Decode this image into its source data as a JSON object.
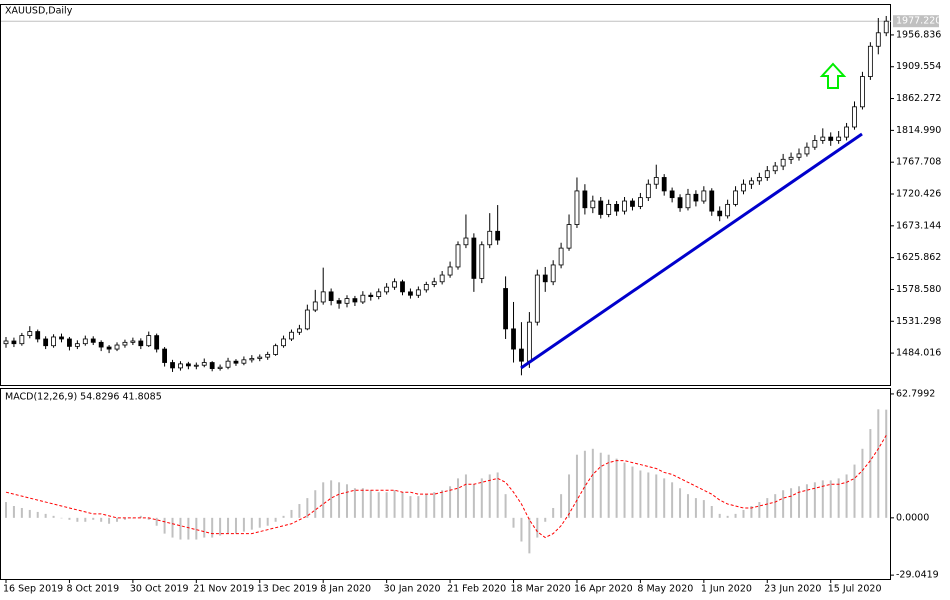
{
  "chart_data": [
    {
      "type": "candlestick",
      "title": "XAUUSD,Daily",
      "up_color": "#ffffff",
      "down_color": "#000000",
      "color": "#000000",
      "categories": [
        "16 Sep 2019",
        null,
        null,
        null,
        null,
        null,
        null,
        null,
        "8 Oct 2019",
        null,
        null,
        null,
        null,
        null,
        null,
        null,
        "30 Oct 2019",
        null,
        null,
        null,
        null,
        null,
        null,
        null,
        "21 Nov 2019",
        null,
        null,
        null,
        null,
        null,
        null,
        null,
        "13 Dec 2019",
        null,
        null,
        null,
        null,
        null,
        null,
        null,
        "8 Jan 2020",
        null,
        null,
        null,
        null,
        null,
        null,
        null,
        "30 Jan 2020",
        null,
        null,
        null,
        null,
        null,
        null,
        null,
        "21 Feb 2020",
        null,
        null,
        null,
        null,
        null,
        null,
        null,
        "18 Mar 2020",
        null,
        null,
        null,
        null,
        null,
        null,
        null,
        "16 Apr 2020",
        null,
        null,
        null,
        null,
        null,
        null,
        null,
        "8 May 2020",
        null,
        null,
        null,
        null,
        null,
        null,
        null,
        "1 Jun 2020",
        null,
        null,
        null,
        null,
        null,
        null,
        null,
        "23 Jun 2020",
        null,
        null,
        null,
        null,
        null,
        null,
        null,
        "15 Jul 2020",
        null,
        null,
        null,
        null,
        null,
        null,
        null
      ],
      "ohlc": [
        [
          1498,
          1508,
          1492,
          1502
        ],
        [
          1502,
          1507,
          1493,
          1498
        ],
        [
          1498,
          1514,
          1495,
          1510
        ],
        [
          1510,
          1524,
          1506,
          1516
        ],
        [
          1516,
          1519,
          1500,
          1505
        ],
        [
          1505,
          1509,
          1490,
          1495
        ],
        [
          1495,
          1512,
          1492,
          1508
        ],
        [
          1508,
          1513,
          1500,
          1505
        ],
        [
          1505,
          1508,
          1488,
          1494
        ],
        [
          1494,
          1503,
          1490,
          1498
        ],
        [
          1498,
          1510,
          1495,
          1505
        ],
        [
          1505,
          1509,
          1496,
          1500
        ],
        [
          1500,
          1503,
          1487,
          1493
        ],
        [
          1493,
          1496,
          1484,
          1490
        ],
        [
          1490,
          1500,
          1487,
          1496
        ],
        [
          1496,
          1504,
          1492,
          1500
        ],
        [
          1500,
          1507,
          1496,
          1502
        ],
        [
          1502,
          1506,
          1490,
          1495
        ],
        [
          1495,
          1516,
          1493,
          1510
        ],
        [
          1510,
          1513,
          1485,
          1490
        ],
        [
          1490,
          1493,
          1464,
          1470
        ],
        [
          1470,
          1474,
          1456,
          1462
        ],
        [
          1462,
          1472,
          1458,
          1468
        ],
        [
          1468,
          1471,
          1460,
          1465
        ],
        [
          1465,
          1470,
          1460,
          1466
        ],
        [
          1466,
          1476,
          1463,
          1470
        ],
        [
          1470,
          1472,
          1457,
          1461
        ],
        [
          1461,
          1467,
          1458,
          1463
        ],
        [
          1463,
          1477,
          1460,
          1472
        ],
        [
          1472,
          1475,
          1465,
          1469
        ],
        [
          1469,
          1479,
          1466,
          1474
        ],
        [
          1474,
          1481,
          1470,
          1476
        ],
        [
          1476,
          1482,
          1472,
          1478
        ],
        [
          1478,
          1486,
          1474,
          1482
        ],
        [
          1482,
          1498,
          1480,
          1495
        ],
        [
          1495,
          1510,
          1492,
          1505
        ],
        [
          1505,
          1519,
          1502,
          1515
        ],
        [
          1515,
          1526,
          1511,
          1520
        ],
        [
          1520,
          1556,
          1518,
          1548
        ],
        [
          1548,
          1578,
          1545,
          1560
        ],
        [
          1560,
          1611,
          1556,
          1575
        ],
        [
          1575,
          1580,
          1555,
          1562
        ],
        [
          1562,
          1566,
          1550,
          1558
        ],
        [
          1558,
          1570,
          1552,
          1565
        ],
        [
          1565,
          1569,
          1554,
          1560
        ],
        [
          1560,
          1576,
          1557,
          1570
        ],
        [
          1570,
          1574,
          1562,
          1568
        ],
        [
          1568,
          1580,
          1564,
          1575
        ],
        [
          1575,
          1588,
          1571,
          1582
        ],
        [
          1582,
          1595,
          1578,
          1590
        ],
        [
          1590,
          1593,
          1570,
          1575
        ],
        [
          1575,
          1580,
          1565,
          1570
        ],
        [
          1570,
          1583,
          1566,
          1578
        ],
        [
          1578,
          1590,
          1574,
          1586
        ],
        [
          1586,
          1596,
          1582,
          1590
        ],
        [
          1590,
          1606,
          1586,
          1600
        ],
        [
          1600,
          1620,
          1596,
          1612
        ],
        [
          1612,
          1650,
          1608,
          1645
        ],
        [
          1645,
          1690,
          1640,
          1655
        ],
        [
          1655,
          1662,
          1575,
          1595
        ],
        [
          1595,
          1650,
          1588,
          1645
        ],
        [
          1645,
          1692,
          1640,
          1665
        ],
        [
          1665,
          1704,
          1645,
          1652
        ],
        [
          1580,
          1598,
          1505,
          1520
        ],
        [
          1520,
          1560,
          1470,
          1490
        ],
        [
          1490,
          1530,
          1451,
          1472
        ],
        [
          1472,
          1545,
          1462,
          1530
        ],
        [
          1530,
          1608,
          1525,
          1600
        ],
        [
          1600,
          1612,
          1575,
          1590
        ],
        [
          1590,
          1622,
          1585,
          1615
        ],
        [
          1615,
          1648,
          1610,
          1640
        ],
        [
          1640,
          1690,
          1636,
          1675
        ],
        [
          1675,
          1745,
          1670,
          1725
        ],
        [
          1725,
          1735,
          1690,
          1700
        ],
        [
          1700,
          1718,
          1692,
          1710
        ],
        [
          1710,
          1716,
          1684,
          1690
        ],
        [
          1690,
          1712,
          1686,
          1705
        ],
        [
          1705,
          1710,
          1688,
          1695
        ],
        [
          1695,
          1716,
          1690,
          1710
        ],
        [
          1710,
          1714,
          1696,
          1702
        ],
        [
          1702,
          1722,
          1698,
          1715
        ],
        [
          1715,
          1742,
          1710,
          1735
        ],
        [
          1735,
          1764,
          1728,
          1745
        ],
        [
          1745,
          1750,
          1718,
          1725
        ],
        [
          1725,
          1730,
          1708,
          1715
        ],
        [
          1715,
          1720,
          1694,
          1700
        ],
        [
          1700,
          1728,
          1696,
          1720
        ],
        [
          1720,
          1726,
          1702,
          1710
        ],
        [
          1710,
          1732,
          1706,
          1725
        ],
        [
          1725,
          1729,
          1688,
          1695
        ],
        [
          1695,
          1702,
          1680,
          1688
        ],
        [
          1688,
          1712,
          1684,
          1705
        ],
        [
          1705,
          1732,
          1702,
          1725
        ],
        [
          1725,
          1742,
          1720,
          1735
        ],
        [
          1735,
          1745,
          1728,
          1740
        ],
        [
          1740,
          1752,
          1734,
          1745
        ],
        [
          1745,
          1762,
          1740,
          1755
        ],
        [
          1755,
          1768,
          1750,
          1762
        ],
        [
          1762,
          1780,
          1756,
          1772
        ],
        [
          1772,
          1782,
          1765,
          1775
        ],
        [
          1775,
          1788,
          1770,
          1780
        ],
        [
          1780,
          1797,
          1776,
          1790
        ],
        [
          1790,
          1808,
          1786,
          1800
        ],
        [
          1800,
          1818,
          1795,
          1805
        ],
        [
          1805,
          1812,
          1792,
          1800
        ],
        [
          1800,
          1814,
          1795,
          1805
        ],
        [
          1805,
          1826,
          1800,
          1820
        ],
        [
          1820,
          1858,
          1816,
          1850
        ],
        [
          1850,
          1902,
          1846,
          1895
        ],
        [
          1895,
          1946,
          1890,
          1940
        ],
        [
          1940,
          1982,
          1928,
          1960
        ],
        [
          1960,
          1985,
          1955,
          1977.22
        ]
      ],
      "ylim": [
        1436.6,
        2001.3
      ],
      "yticks": [
        1484.016,
        1531.298,
        {
          "value": 1578.58,
          "label": "1578.580"
        },
        1625.862,
        1673.144,
        1720.426,
        1767.708,
        {
          "value": 1814.99,
          "label": "1814.990"
        },
        1862.272,
        1909.554,
        1956.836
      ],
      "last_price": {
        "value": 1977.22,
        "label": "1977.220"
      }
    },
    {
      "type": "macd",
      "title": "MACD(12,26,9) 54.8296 41.8085",
      "histogram": {
        "color": "#c0c0c0",
        "values": [
          8,
          6,
          5,
          4,
          3,
          2,
          1,
          0,
          -1,
          -2,
          -2,
          -1,
          -2,
          -3,
          -2,
          -1,
          0,
          1,
          -1,
          -4,
          -8,
          -10,
          -11,
          -11,
          -11,
          -10,
          -10,
          -9,
          -8,
          -8,
          -7,
          -6,
          -5,
          -4,
          -2,
          1,
          4,
          7,
          10,
          14,
          18,
          19,
          18,
          17,
          15,
          15,
          14,
          13,
          13,
          14,
          13,
          11,
          11,
          12,
          13,
          14,
          16,
          20,
          22,
          17,
          20,
          22,
          23,
          12,
          -5,
          -12,
          -18,
          -10,
          -2,
          5,
          12,
          22,
          32,
          34,
          35,
          33,
          32,
          30,
          28,
          26,
          24,
          23,
          22,
          20,
          18,
          15,
          12,
          10,
          9,
          6,
          2,
          1,
          2,
          4,
          6,
          8,
          10,
          12,
          14,
          15,
          16,
          17,
          18,
          19,
          19,
          20,
          22,
          27,
          35,
          45,
          55,
          54.8296
        ]
      },
      "signal": {
        "color": "#ff0000",
        "values": [
          13,
          12,
          11,
          10,
          9,
          8,
          7,
          6,
          5,
          4,
          3,
          2,
          2,
          1,
          0,
          0,
          0,
          0,
          0,
          -1,
          -2,
          -3,
          -4,
          -5,
          -6,
          -7,
          -8,
          -8,
          -8,
          -8,
          -8,
          -8,
          -7,
          -6,
          -5,
          -4,
          -3,
          -1,
          1,
          4,
          7,
          10,
          12,
          13,
          14,
          14,
          14,
          14,
          14,
          14,
          13,
          13,
          12,
          12,
          12,
          13,
          14,
          15,
          17,
          17,
          18,
          19,
          20,
          18,
          13,
          7,
          -1,
          -7,
          -10,
          -8,
          -4,
          2,
          9,
          16,
          22,
          26,
          28,
          29,
          29,
          28,
          27,
          26,
          25,
          23,
          22,
          20,
          18,
          16,
          14,
          12,
          9,
          7,
          6,
          5,
          5,
          6,
          7,
          8,
          10,
          11,
          13,
          14,
          15,
          16,
          17,
          17,
          18,
          20,
          24,
          29,
          35,
          41.8085
        ]
      },
      "ylim": [
        -31,
        65.3
      ],
      "yticks": [
        -29.0419,
        {
          "value": 0,
          "label": "0.0000"
        },
        62.7992
      ]
    }
  ]
}
